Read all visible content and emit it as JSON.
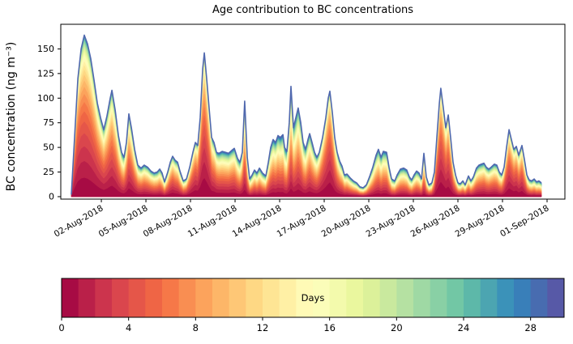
{
  "chart_data": {
    "type": "area",
    "subtype": "stacked-area-by-age",
    "title": "Age contribution to BC concentrations",
    "ylabel": "BC concentration (ng m⁻³)",
    "xlabel": "",
    "grid": false,
    "background": "#ffffff",
    "spine_color": "#000000",
    "total_line_color": "#5068ae",
    "stack_bottom_to_top": "age 0 days (bottom) to age 30 days (top)",
    "x_domain_days": [
      -1.73,
      32.2
    ],
    "t_unit": "days since 01-Aug-2018 00:00",
    "y_domain": [
      -2.5,
      175
    ],
    "y_ticks": [
      0,
      25,
      50,
      75,
      100,
      125,
      150
    ],
    "x_ticks": {
      "positions_days": [
        1,
        4,
        7,
        10,
        13,
        16,
        19,
        22,
        25,
        28,
        31
      ],
      "labels": [
        "02-Aug-2018",
        "05-Aug-2018",
        "08-Aug-2018",
        "11-Aug-2018",
        "14-Aug-2018",
        "17-Aug-2018",
        "20-Aug-2018",
        "23-Aug-2018",
        "26-Aug-2018",
        "29-Aug-2018",
        "01-Sep-2018"
      ]
    },
    "colorbar": {
      "label": "Days",
      "domain": [
        0,
        30
      ],
      "bins": 30,
      "ticks": [
        0,
        4,
        8,
        12,
        16,
        20,
        24,
        28
      ],
      "colormap": "Spectral",
      "colormap_anchors": [
        "#9e0142",
        "#d53e4f",
        "#f46d43",
        "#fdae61",
        "#fee08b",
        "#ffffbf",
        "#e6f598",
        "#abdda4",
        "#66c2a5",
        "#3288bd",
        "#5e4fa2"
      ]
    },
    "series": {
      "t": [
        -1.02,
        -0.8,
        -0.58,
        -0.36,
        -0.15,
        0.07,
        0.29,
        0.51,
        0.73,
        0.95,
        1.16,
        1.38,
        1.6,
        1.71,
        1.93,
        2.15,
        2.36,
        2.53,
        2.69,
        2.85,
        3.02,
        3.24,
        3.45,
        3.67,
        3.89,
        4.11,
        4.33,
        4.55,
        4.76,
        4.93,
        5.09,
        5.25,
        5.47,
        5.64,
        5.8,
        5.96,
        6.13,
        6.29,
        6.51,
        6.73,
        6.95,
        7.16,
        7.33,
        7.49,
        7.65,
        7.82,
        7.93,
        8.09,
        8.25,
        8.42,
        8.58,
        8.75,
        8.91,
        9.13,
        9.35,
        9.56,
        9.78,
        9.95,
        10.16,
        10.33,
        10.49,
        10.65,
        10.82,
        10.98,
        11.15,
        11.31,
        11.47,
        11.64,
        11.85,
        12.07,
        12.24,
        12.4,
        12.56,
        12.73,
        12.89,
        13.05,
        13.22,
        13.33,
        13.49,
        13.65,
        13.76,
        13.93,
        14.09,
        14.25,
        14.42,
        14.58,
        14.75,
        14.91,
        15.02,
        15.18,
        15.35,
        15.51,
        15.67,
        15.89,
        16.11,
        16.27,
        16.38,
        16.55,
        16.71,
        16.87,
        17.04,
        17.2,
        17.36,
        17.53,
        17.75,
        17.96,
        18.18,
        18.4,
        18.62,
        18.84,
        19.05,
        19.27,
        19.49,
        19.65,
        19.82,
        19.98,
        20.2,
        20.36,
        20.53,
        20.75,
        20.91,
        21.13,
        21.35,
        21.56,
        21.73,
        21.89,
        22.05,
        22.22,
        22.38,
        22.55,
        22.71,
        22.87,
        23.04,
        23.25,
        23.42,
        23.58,
        23.75,
        23.85,
        24.02,
        24.18,
        24.35,
        24.51,
        24.67,
        24.84,
        25.0,
        25.16,
        25.33,
        25.49,
        25.71,
        25.87,
        26.04,
        26.25,
        26.42,
        26.58,
        26.75,
        26.91,
        27.07,
        27.24,
        27.45,
        27.62,
        27.78,
        27.95,
        28.11,
        28.27,
        28.44,
        28.6,
        28.76,
        28.93,
        29.09,
        29.31,
        29.47,
        29.64,
        29.8,
        29.96,
        30.13,
        30.29,
        30.45,
        30.62
      ],
      "total": [
        2,
        60,
        120,
        150,
        164,
        155,
        140,
        118,
        95,
        80,
        68,
        82,
        100,
        108,
        88,
        62,
        45,
        40,
        55,
        84,
        70,
        48,
        32,
        29,
        32,
        30,
        26,
        24,
        25,
        28,
        24,
        15,
        25,
        35,
        41,
        37,
        35,
        26,
        16,
        18,
        30,
        45,
        55,
        52,
        80,
        130,
        146,
        120,
        90,
        60,
        55,
        45,
        44,
        46,
        45,
        44,
        47,
        49,
        39,
        35,
        45,
        97,
        40,
        18,
        22,
        27,
        24,
        29,
        24,
        21,
        35,
        50,
        58,
        55,
        62,
        60,
        63,
        50,
        46,
        75,
        112,
        70,
        80,
        90,
        75,
        55,
        48,
        58,
        64,
        55,
        45,
        40,
        45,
        60,
        80,
        100,
        107,
        85,
        60,
        45,
        36,
        31,
        22,
        23,
        19,
        16,
        14,
        10,
        9,
        12,
        20,
        30,
        42,
        48,
        40,
        46,
        45,
        30,
        18,
        16,
        22,
        28,
        29,
        27,
        20,
        17,
        22,
        26,
        24,
        18,
        44,
        20,
        12,
        14,
        25,
        60,
        95,
        110,
        90,
        70,
        83,
        60,
        35,
        22,
        14,
        13,
        16,
        12,
        21,
        16,
        20,
        29,
        32,
        33,
        34,
        30,
        28,
        30,
        33,
        32,
        25,
        22,
        30,
        50,
        68,
        58,
        48,
        51,
        42,
        52,
        38,
        22,
        17,
        16,
        18,
        15,
        16,
        14
      ],
      "young_fraction": [
        0.7,
        0.75,
        0.72,
        0.7,
        0.68,
        0.68,
        0.67,
        0.66,
        0.65,
        0.62,
        0.6,
        0.6,
        0.62,
        0.62,
        0.6,
        0.55,
        0.5,
        0.5,
        0.55,
        0.6,
        0.58,
        0.52,
        0.5,
        0.5,
        0.52,
        0.5,
        0.48,
        0.46,
        0.46,
        0.48,
        0.45,
        0.42,
        0.5,
        0.55,
        0.58,
        0.55,
        0.52,
        0.48,
        0.45,
        0.5,
        0.6,
        0.65,
        0.68,
        0.66,
        0.7,
        0.72,
        0.72,
        0.7,
        0.65,
        0.6,
        0.58,
        0.55,
        0.52,
        0.5,
        0.5,
        0.5,
        0.52,
        0.52,
        0.48,
        0.45,
        0.5,
        0.45,
        0.4,
        0.4,
        0.42,
        0.45,
        0.42,
        0.45,
        0.4,
        0.38,
        0.42,
        0.45,
        0.48,
        0.46,
        0.48,
        0.46,
        0.45,
        0.42,
        0.42,
        0.45,
        0.45,
        0.42,
        0.45,
        0.5,
        0.48,
        0.45,
        0.45,
        0.5,
        0.52,
        0.5,
        0.5,
        0.52,
        0.58,
        0.65,
        0.7,
        0.72,
        0.74,
        0.7,
        0.62,
        0.55,
        0.5,
        0.48,
        0.45,
        0.45,
        0.42,
        0.4,
        0.38,
        0.35,
        0.35,
        0.38,
        0.4,
        0.42,
        0.45,
        0.45,
        0.42,
        0.45,
        0.45,
        0.4,
        0.38,
        0.38,
        0.4,
        0.42,
        0.42,
        0.4,
        0.38,
        0.38,
        0.4,
        0.42,
        0.4,
        0.38,
        0.42,
        0.38,
        0.36,
        0.4,
        0.55,
        0.68,
        0.72,
        0.74,
        0.72,
        0.68,
        0.7,
        0.65,
        0.55,
        0.48,
        0.42,
        0.4,
        0.42,
        0.4,
        0.45,
        0.42,
        0.45,
        0.48,
        0.5,
        0.5,
        0.52,
        0.5,
        0.5,
        0.52,
        0.52,
        0.5,
        0.48,
        0.5,
        0.58,
        0.65,
        0.7,
        0.68,
        0.65,
        0.68,
        0.6,
        0.65,
        0.55,
        0.45,
        0.4,
        0.38,
        0.38,
        0.36,
        0.35,
        0.35
      ]
    }
  }
}
